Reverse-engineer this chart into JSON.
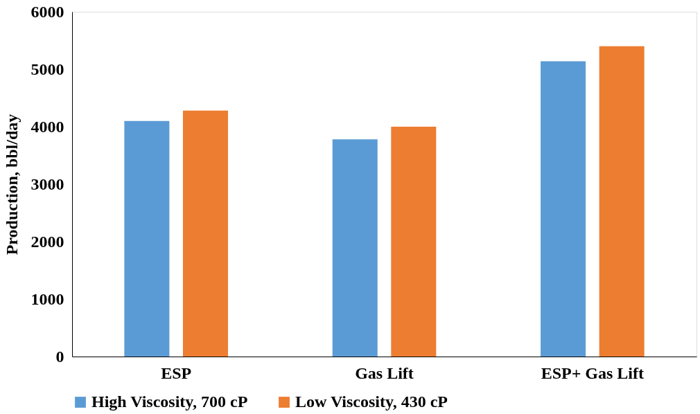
{
  "chart_data": {
    "type": "bar",
    "ylabel": "Production, bbl/day",
    "categories": [
      "ESP",
      "Gas Lift",
      "ESP+ Gas Lift"
    ],
    "series": [
      {
        "name": "High Viscosity, 700 cP",
        "color": "#5b9bd5",
        "values": [
          4100,
          3780,
          5140
        ]
      },
      {
        "name": "Low Viscosity, 430 cP",
        "color": "#ed7d31",
        "values": [
          4280,
          4000,
          5400
        ]
      }
    ],
    "ylim": [
      0,
      6000
    ],
    "yticks": [
      0,
      1000,
      2000,
      3000,
      4000,
      5000,
      6000
    ],
    "grid": false,
    "legend": "bottom"
  }
}
